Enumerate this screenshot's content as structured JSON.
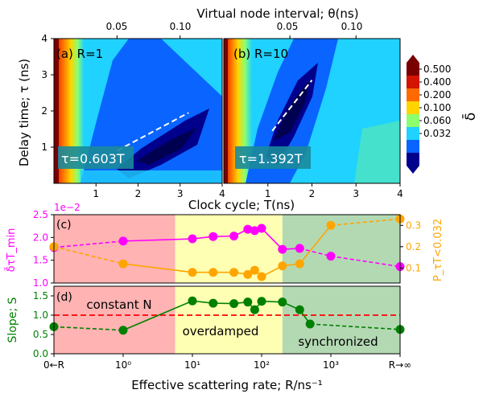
{
  "chart_data": [
    {
      "type": "heatmap",
      "panel_label": "(a) R=1",
      "annotation": "τ=0.603T",
      "fit_slope": 0.603,
      "xlabel": "Clock cycle; T(ns)",
      "ylabel": "Delay time; τ (ns)",
      "top_xlabel": "Virtual node interval; θ(ns)",
      "top_ticks": [
        "0.05",
        "0.10"
      ],
      "top_tick_positions": [
        1.5,
        3.0
      ],
      "xlim": [
        0,
        4
      ],
      "ylim": [
        0,
        4
      ],
      "x_ticks": [
        "1",
        "2",
        "3",
        "4"
      ],
      "y_ticks": [
        "1",
        "2",
        "3",
        "4"
      ],
      "fit_line": [
        [
          1.5,
          0.9
        ],
        [
          3.2,
          1.95
        ]
      ]
    },
    {
      "type": "heatmap",
      "panel_label": "(b) R=10",
      "annotation": "τ=1.392T",
      "fit_slope": 1.392,
      "xlim": [
        0,
        4
      ],
      "ylim": [
        0,
        4
      ],
      "x_ticks": [
        "1",
        "2",
        "3",
        "4"
      ],
      "top_ticks": [
        "0.05",
        "0.10"
      ],
      "top_tick_positions": [
        1.5,
        3.0
      ],
      "fit_line": [
        [
          1.1,
          1.45
        ],
        [
          2.0,
          2.85
        ]
      ],
      "colorbar": {
        "label": "δ̄",
        "tick_labels": [
          "0.500",
          "0.400",
          "0.200",
          "0.100",
          "0.060",
          "0.032"
        ],
        "colors": [
          "#7a0000",
          "#d21400",
          "#ff6a00",
          "#ffd400",
          "#8cff6e",
          "#1fd2ff",
          "#0a64ff",
          "#00008c"
        ]
      }
    },
    {
      "type": "line",
      "panel_label": "(c)",
      "xlabel": "Effective scattering rate; R/ns⁻¹",
      "x_ticks": [
        "0←R",
        "10⁰",
        "10¹",
        "10²",
        "10³",
        "R→∞"
      ],
      "ylabel_left": "δ̄τT_min",
      "ylabel_right": "P_τT<0.032",
      "left_exponent": "1e−2",
      "y_left_ticks": [
        "1.0",
        "1.5",
        "2.0",
        "2.5"
      ],
      "y_right_ticks": [
        "0.1",
        "0.2",
        "0.3"
      ],
      "ylim_left": [
        1.0,
        2.5
      ],
      "ylim_right": [
        0.03,
        0.35
      ],
      "x": [
        0.0,
        1.0,
        2.0,
        2.3,
        2.6,
        2.8,
        2.9,
        3.0,
        3.3,
        3.55,
        4.0,
        5.0
      ],
      "series": [
        {
          "side": "left",
          "color": "#ff00ff",
          "values": [
            1.78,
            1.92,
            1.97,
            2.02,
            2.03,
            2.18,
            2.15,
            2.2,
            1.74,
            1.76,
            1.59,
            1.36
          ]
        },
        {
          "side": "right",
          "color": "#ffa500",
          "values": [
            0.2,
            0.12,
            0.08,
            0.08,
            0.08,
            0.07,
            0.09,
            0.06,
            0.11,
            0.12,
            0.3,
            0.33
          ]
        }
      ],
      "regions": [
        {
          "x0": 0.0,
          "x1": 1.75,
          "color": "#ffb3b3"
        },
        {
          "x0": 1.75,
          "x1": 3.3,
          "color": "#ffffb3"
        },
        {
          "x0": 3.3,
          "x1": 5.0,
          "color": "#b3d9b3"
        }
      ]
    },
    {
      "type": "line",
      "panel_label": "(d)",
      "ylabel": "Slope; S",
      "y_ticks": [
        "0.0",
        "0.5",
        "1.0",
        "1.5"
      ],
      "ylim": [
        0.0,
        1.75
      ],
      "x": [
        0.0,
        1.0,
        2.0,
        2.3,
        2.6,
        2.8,
        2.9,
        3.0,
        3.3,
        3.55,
        3.7,
        5.0
      ],
      "values": [
        0.7,
        0.61,
        1.37,
        1.31,
        1.3,
        1.34,
        1.14,
        1.36,
        1.34,
        1.14,
        0.77,
        0.63
      ],
      "color": "#008000",
      "reference_line": 1.0,
      "region_labels": [
        "constant N",
        "overdamped",
        "synchronized"
      ]
    }
  ]
}
